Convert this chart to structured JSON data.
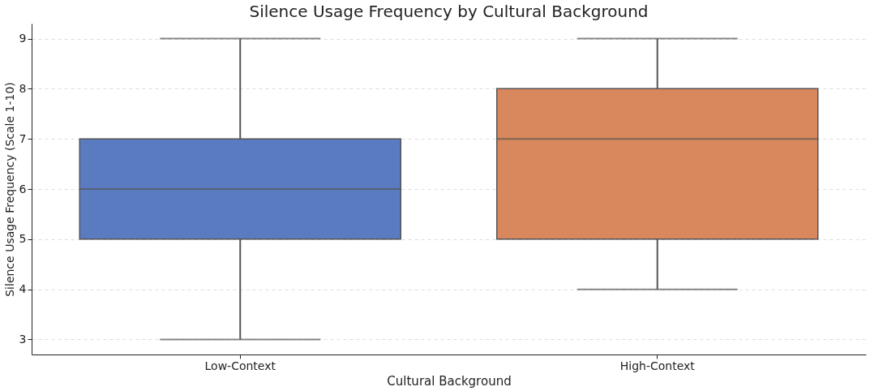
{
  "chart_data": {
    "type": "box",
    "title": "Silence Usage Frequency by Cultural Background",
    "xlabel": "Cultural Background",
    "ylabel": "Silence Usage Frequency (Scale 1-10)",
    "categories": [
      "Low-Context",
      "High-Context"
    ],
    "boxes": [
      {
        "low": 3,
        "q1": 5,
        "median": 6,
        "q3": 7,
        "high": 9
      },
      {
        "low": 4,
        "q1": 5,
        "median": 7,
        "q3": 8,
        "high": 9
      }
    ],
    "colors": [
      "#5a7bc0",
      "#d9875c"
    ],
    "ylim": [
      2.7,
      9.3
    ],
    "yticks": [
      3,
      4,
      5,
      6,
      7,
      8,
      9
    ],
    "grid": "y",
    "legend": false
  }
}
